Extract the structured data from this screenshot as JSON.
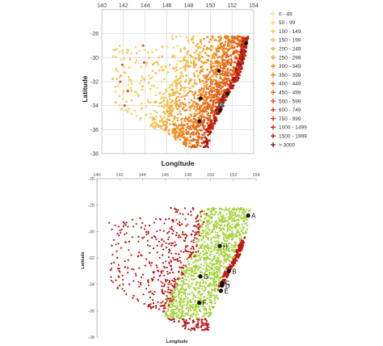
{
  "chart_data": [
    {
      "type": "scatter",
      "title": "",
      "xlabel": "Longitude",
      "ylabel": "Latitude",
      "xlim": [
        140,
        154
      ],
      "ylim": [
        -38,
        -26
      ],
      "x_ticks": [
        140,
        142,
        144,
        146,
        148,
        150,
        152,
        154
      ],
      "y_ticks": [
        -28,
        -30,
        -32,
        -34,
        -36,
        -38
      ],
      "grid": true,
      "legend_placement": "right",
      "legend": [
        {
          "label": "0 - 49",
          "color": "#f3e48a"
        },
        {
          "label": "50 - 99",
          "color": "#f2d76c"
        },
        {
          "label": "100 - 149",
          "color": "#f2c95a"
        },
        {
          "label": "150 - 199",
          "color": "#f1bb4c"
        },
        {
          "label": "200 - 249",
          "color": "#efab3c"
        },
        {
          "label": "250 - 299",
          "color": "#ee9c30"
        },
        {
          "label": "300 - 349",
          "color": "#ec8c26"
        },
        {
          "label": "350 - 399",
          "color": "#ea7d20"
        },
        {
          "label": "400 - 449",
          "color": "#e86e1b"
        },
        {
          "label": "450 - 499",
          "color": "#e45f18"
        },
        {
          "label": "500 - 599",
          "color": "#df5015"
        },
        {
          "label": "600 - 749",
          "color": "#d84213"
        },
        {
          "label": "750 - 999",
          "color": "#cf3412"
        },
        {
          "label": "1000 - 1499",
          "color": "#c22811"
        },
        {
          "label": "1500 - 1999",
          "color": "#b21d10"
        },
        {
          "label": "> 3000",
          "color": "#9e120e"
        }
      ],
      "highlight_points": [
        {
          "x": 153.3,
          "y": -28.8,
          "color": "#111111"
        },
        {
          "x": 150.8,
          "y": -31.1,
          "color": "#111111"
        },
        {
          "x": 151.6,
          "y": -33.0,
          "color": "#111111"
        },
        {
          "x": 151.0,
          "y": -33.9,
          "color": "#3aa0d8"
        },
        {
          "x": 149.1,
          "y": -33.4,
          "color": "#111111"
        },
        {
          "x": 150.9,
          "y": -34.4,
          "color": "#111111"
        },
        {
          "x": 149.0,
          "y": -35.3,
          "color": "#111111"
        }
      ]
    },
    {
      "type": "scatter",
      "title": "",
      "xlabel": "Longitude",
      "ylabel": "Latitude",
      "xlim": [
        140,
        154
      ],
      "ylim": [
        -38,
        -26
      ],
      "x_ticks": [
        140,
        142,
        144,
        146,
        148,
        150,
        152,
        154
      ],
      "y_ticks": [
        -26,
        -28,
        -30,
        -32,
        -34,
        -36,
        -38
      ],
      "grid": false,
      "series": [
        {
          "color": "#a6d33c"
        },
        {
          "color": "#c01818"
        }
      ],
      "labeled_points": [
        {
          "label": "A",
          "x": 153.3,
          "y": -28.8
        },
        {
          "label": "H",
          "x": 150.8,
          "y": -31.1
        },
        {
          "label": "B",
          "x": 151.6,
          "y": -33.0
        },
        {
          "label": "C",
          "x": 151.0,
          "y": -33.9
        },
        {
          "label": "G",
          "x": 149.1,
          "y": -33.4
        },
        {
          "label": "D",
          "x": 151.0,
          "y": -34.1
        },
        {
          "label": "E",
          "x": 150.9,
          "y": -34.5
        },
        {
          "label": "F",
          "x": 149.0,
          "y": -35.4
        }
      ]
    }
  ]
}
